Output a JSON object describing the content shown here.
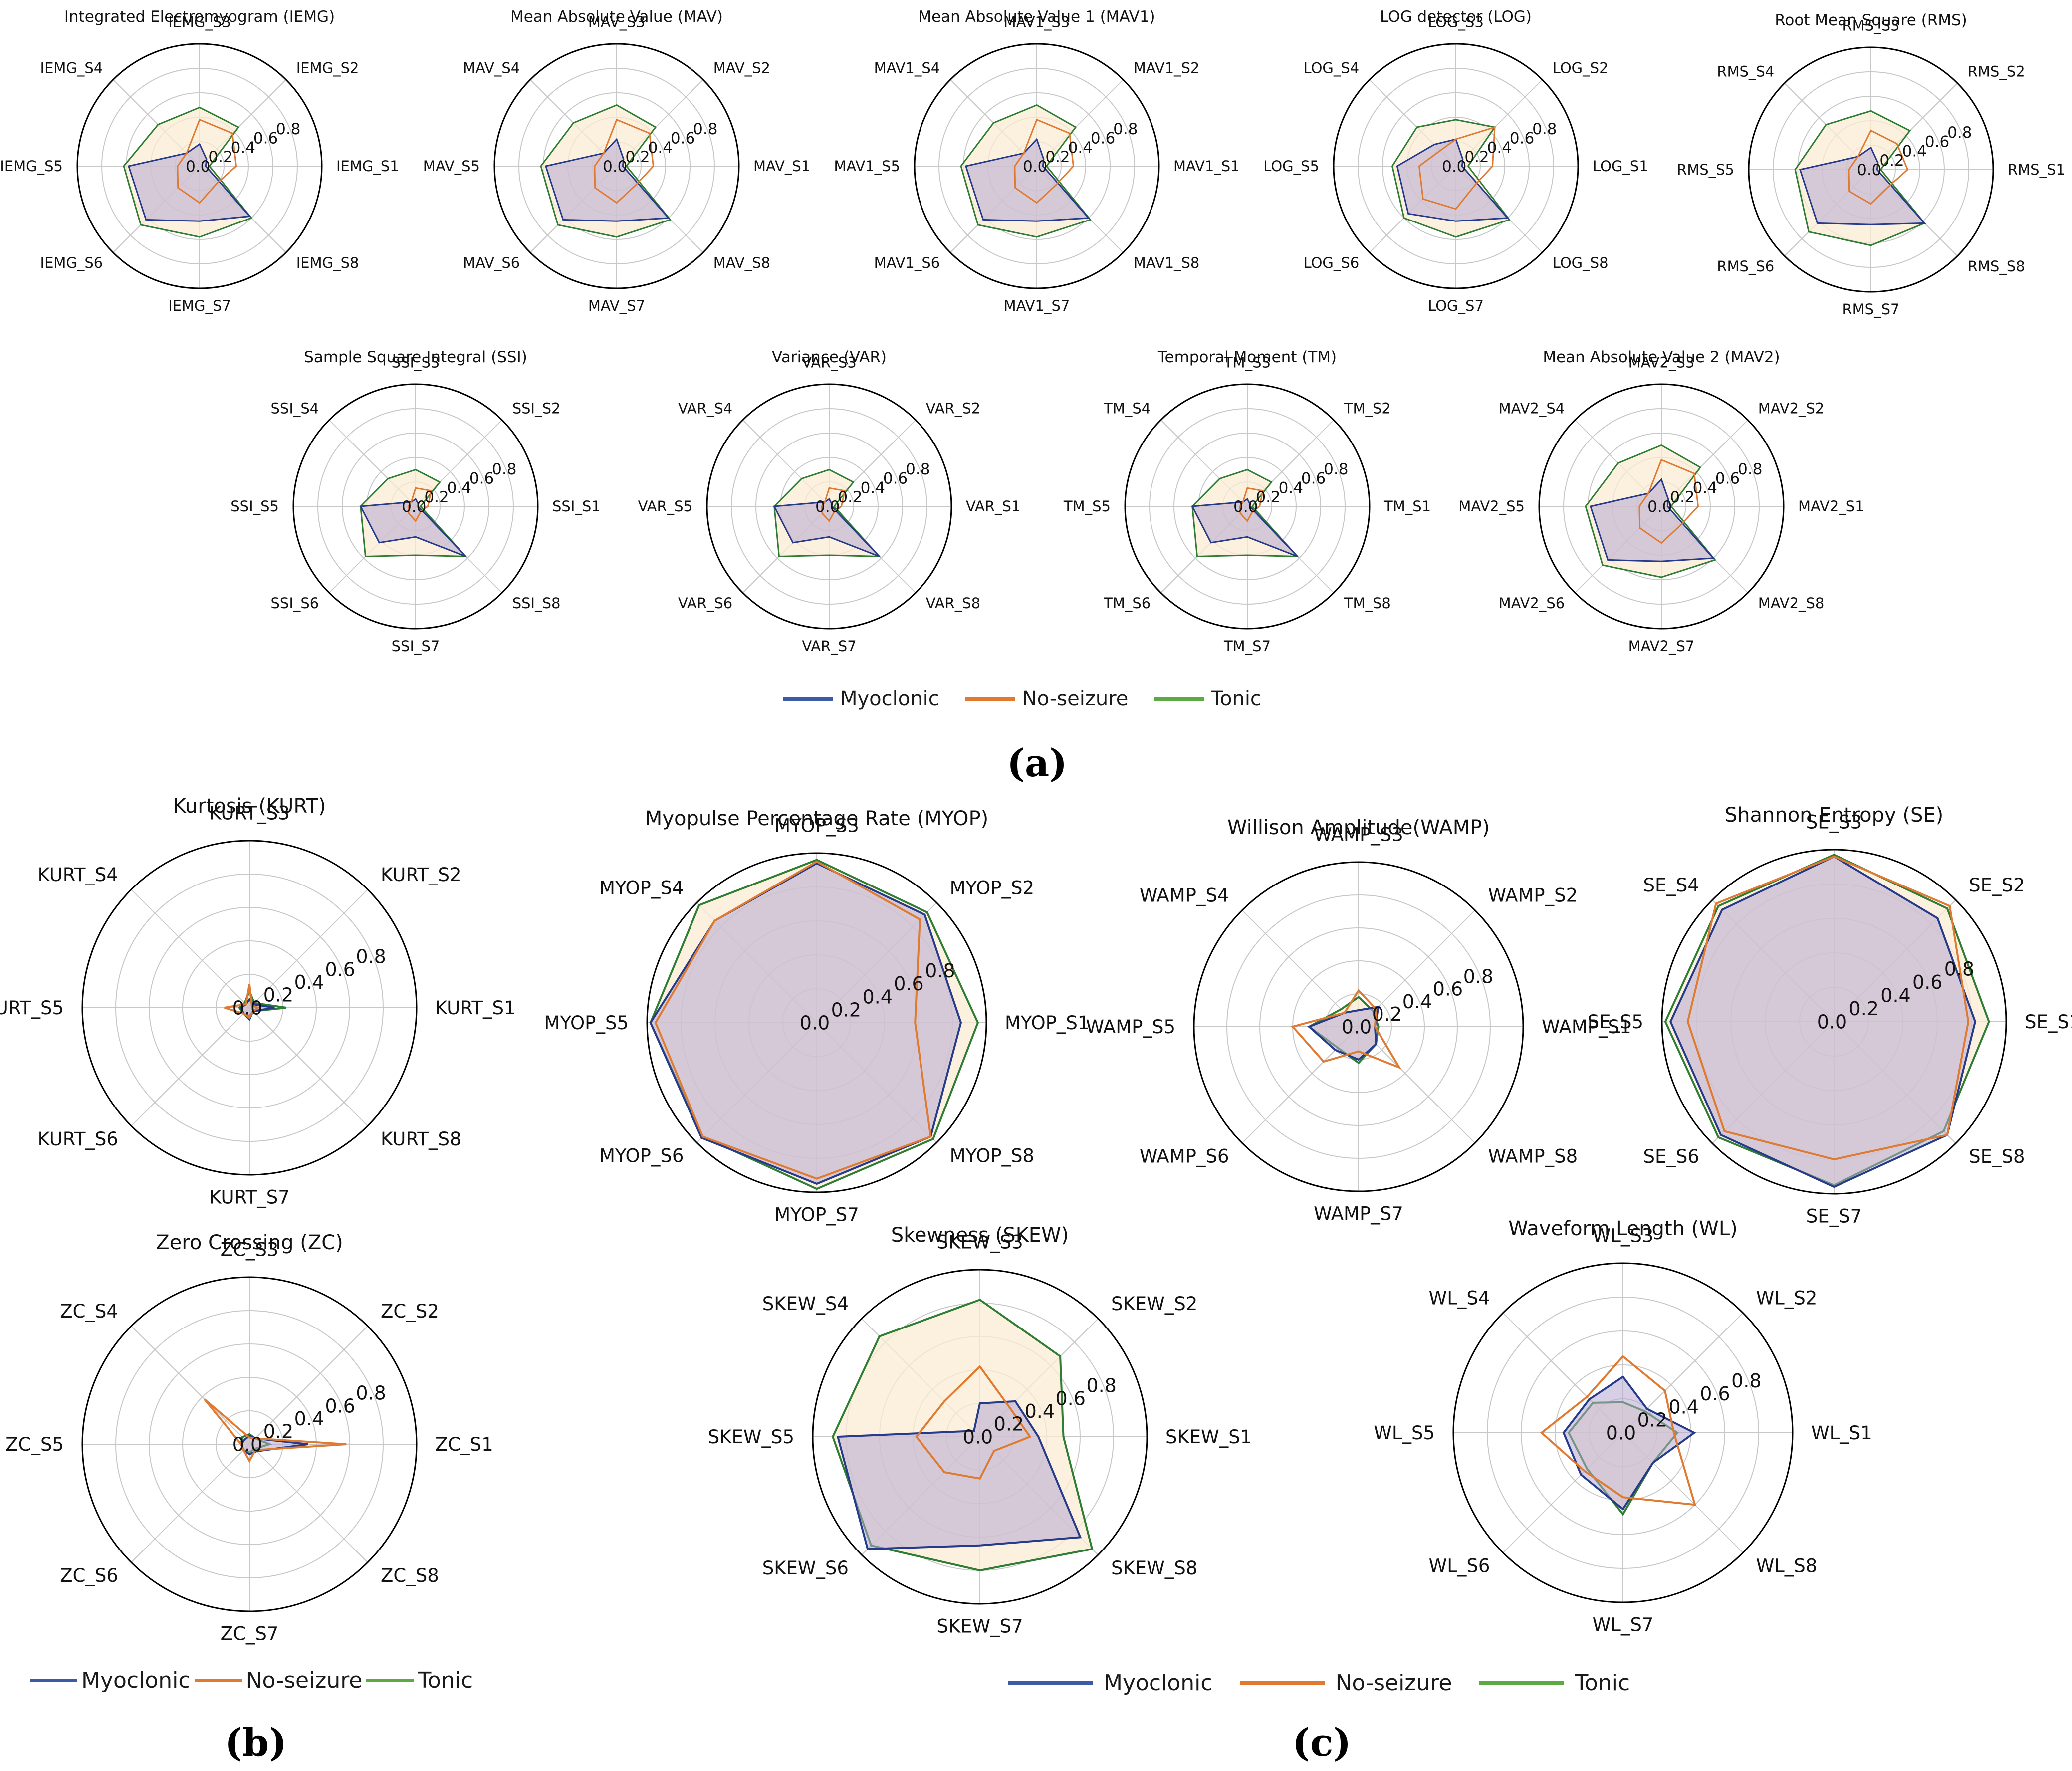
{
  "figure": {
    "panel_labels": {
      "a": "(a)",
      "b": "(b)",
      "c": "(c)"
    },
    "legend_a": [
      "Myoclonic",
      "No-seizure",
      "Tonic"
    ],
    "legend_b": [
      "Myoclonic",
      "No-seizure",
      "Tonic"
    ],
    "legend_c": [
      "Myoclonic",
      "No-seizure",
      "Tonic"
    ]
  },
  "colors": {
    "Myoclonic": "#3b5ba9",
    "No-seizure": "#e07a30",
    "Tonic": "#5da943",
    "Tonic_fill": "#fbecd4",
    "Myoclonic_fill": "#b5a8cf"
  },
  "chart_data": [
    {
      "type": "radar",
      "title": "Integrated Electromyogram (IEMG)",
      "prefix": "IEMG",
      "axes": [
        "IEMG_S1",
        "IEMG_S2",
        "IEMG_S3",
        "IEMG_S4",
        "IEMG_S5",
        "IEMG_S6",
        "IEMG_S7",
        "IEMG_S8"
      ],
      "rticks": [
        "0.0",
        "0.2",
        "0.4",
        "0.6",
        "0.8"
      ],
      "rlim": [
        0,
        1
      ],
      "series": [
        {
          "name": "Myoclonic",
          "values": [
            0.05,
            0.08,
            0.18,
            0.15,
            0.58,
            0.62,
            0.45,
            0.58
          ]
        },
        {
          "name": "No-seizure",
          "values": [
            0.3,
            0.38,
            0.38,
            0.15,
            0.18,
            0.25,
            0.3,
            0.2
          ]
        },
        {
          "name": "Tonic",
          "values": [
            0.08,
            0.45,
            0.48,
            0.48,
            0.62,
            0.68,
            0.58,
            0.6
          ]
        }
      ]
    },
    {
      "type": "radar",
      "title": "Mean Absolute Value (MAV)",
      "prefix": "MAV",
      "axes": [
        "MAV_S1",
        "MAV_S2",
        "MAV_S3",
        "MAV_S4",
        "MAV_S5",
        "MAV_S6",
        "MAV_S7",
        "MAV_S8"
      ],
      "rticks": [
        "0.0",
        "0.2",
        "0.4",
        "0.6",
        "0.8"
      ],
      "rlim": [
        0,
        1
      ],
      "series": [
        {
          "name": "Myoclonic",
          "values": [
            0.05,
            0.08,
            0.22,
            0.15,
            0.58,
            0.62,
            0.45,
            0.6
          ]
        },
        {
          "name": "No-seizure",
          "values": [
            0.3,
            0.38,
            0.38,
            0.15,
            0.18,
            0.25,
            0.3,
            0.22
          ]
        },
        {
          "name": "Tonic",
          "values": [
            0.08,
            0.45,
            0.5,
            0.5,
            0.62,
            0.68,
            0.58,
            0.62
          ]
        }
      ]
    },
    {
      "type": "radar",
      "title": "Mean Absolute Value 1 (MAV1)",
      "prefix": "MAV1",
      "axes": [
        "MAV1_S1",
        "MAV1_S2",
        "MAV1_S3",
        "MAV1_S4",
        "MAV1_S5",
        "MAV1_S6",
        "MAV1_S7",
        "MAV1_S8"
      ],
      "rticks": [
        "0.0",
        "0.2",
        "0.4",
        "0.6",
        "0.8"
      ],
      "rlim": [
        0,
        1
      ],
      "series": [
        {
          "name": "Myoclonic",
          "values": [
            0.05,
            0.08,
            0.22,
            0.15,
            0.58,
            0.62,
            0.45,
            0.6
          ]
        },
        {
          "name": "No-seizure",
          "values": [
            0.3,
            0.38,
            0.38,
            0.15,
            0.18,
            0.25,
            0.3,
            0.22
          ]
        },
        {
          "name": "Tonic",
          "values": [
            0.08,
            0.45,
            0.5,
            0.5,
            0.62,
            0.68,
            0.58,
            0.62
          ]
        }
      ]
    },
    {
      "type": "radar",
      "title": "LOG detector (LOG)",
      "prefix": "LOG",
      "axes": [
        "LOG_S1",
        "LOG_S2",
        "LOG_S3",
        "LOG_S4",
        "LOG_S5",
        "LOG_S6",
        "LOG_S7",
        "LOG_S8"
      ],
      "rticks": [
        "0.0",
        "0.2",
        "0.4",
        "0.6",
        "0.8"
      ],
      "rlim": [
        0,
        1
      ],
      "series": [
        {
          "name": "Myoclonic",
          "values": [
            0.05,
            0.08,
            0.22,
            0.25,
            0.48,
            0.55,
            0.45,
            0.6
          ]
        },
        {
          "name": "No-seizure",
          "values": [
            0.3,
            0.45,
            0.22,
            0.18,
            0.3,
            0.38,
            0.35,
            0.22
          ]
        },
        {
          "name": "Tonic",
          "values": [
            0.1,
            0.45,
            0.38,
            0.45,
            0.52,
            0.6,
            0.58,
            0.62
          ]
        }
      ]
    },
    {
      "type": "radar",
      "title": "Root Mean Square (RMS)",
      "prefix": "RMS",
      "axes": [
        "RMS_S1",
        "RMS_S2",
        "RMS_S3",
        "RMS_S4",
        "RMS_S5",
        "RMS_S6",
        "RMS_S7",
        "RMS_S8"
      ],
      "rticks": [
        "0.0",
        "0.2",
        "0.4",
        "0.6",
        "0.8"
      ],
      "rlim": [
        0,
        1
      ],
      "series": [
        {
          "name": "Myoclonic",
          "values": [
            0.05,
            0.08,
            0.18,
            0.15,
            0.58,
            0.62,
            0.45,
            0.62
          ]
        },
        {
          "name": "No-seizure",
          "values": [
            0.3,
            0.3,
            0.32,
            0.15,
            0.18,
            0.25,
            0.28,
            0.2
          ]
        },
        {
          "name": "Tonic",
          "values": [
            0.08,
            0.45,
            0.48,
            0.52,
            0.62,
            0.72,
            0.62,
            0.62
          ]
        }
      ]
    },
    {
      "type": "radar",
      "title": "Sample Square Integral (SSI)",
      "prefix": "SSI",
      "axes": [
        "SSI_S1",
        "SSI_S2",
        "SSI_S3",
        "SSI_S4",
        "SSI_S5",
        "SSI_S6",
        "SSI_S7",
        "SSI_S8"
      ],
      "rticks": [
        "0.0",
        "0.2",
        "0.4",
        "0.6",
        "0.8"
      ],
      "rlim": [
        0,
        1
      ],
      "series": [
        {
          "name": "Myoclonic",
          "values": [
            0.02,
            0.03,
            0.06,
            0.05,
            0.45,
            0.42,
            0.25,
            0.58
          ]
        },
        {
          "name": "No-seizure",
          "values": [
            0.1,
            0.18,
            0.15,
            0.05,
            0.06,
            0.08,
            0.12,
            0.06
          ]
        },
        {
          "name": "Tonic",
          "values": [
            0.04,
            0.28,
            0.3,
            0.32,
            0.45,
            0.58,
            0.4,
            0.58
          ]
        }
      ]
    },
    {
      "type": "radar",
      "title": "Variance (VAR)",
      "prefix": "VAR",
      "axes": [
        "VAR_S1",
        "VAR_S2",
        "VAR_S3",
        "VAR_S4",
        "VAR_S5",
        "VAR_S6",
        "VAR_S7",
        "VAR_S8"
      ],
      "rticks": [
        "0.0",
        "0.2",
        "0.4",
        "0.6",
        "0.8"
      ],
      "rlim": [
        0,
        1
      ],
      "series": [
        {
          "name": "Myoclonic",
          "values": [
            0.02,
            0.03,
            0.06,
            0.05,
            0.45,
            0.42,
            0.25,
            0.58
          ]
        },
        {
          "name": "No-seizure",
          "values": [
            0.1,
            0.18,
            0.15,
            0.05,
            0.06,
            0.08,
            0.12,
            0.06
          ]
        },
        {
          "name": "Tonic",
          "values": [
            0.04,
            0.28,
            0.3,
            0.32,
            0.45,
            0.58,
            0.4,
            0.58
          ]
        }
      ]
    },
    {
      "type": "radar",
      "title": "Temporal Moment (TM)",
      "prefix": "TM",
      "axes": [
        "TM_S1",
        "TM_S2",
        "TM_S3",
        "TM_S4",
        "TM_S5",
        "TM_S6",
        "TM_S7",
        "TM_S8"
      ],
      "rticks": [
        "0.0",
        "0.2",
        "0.4",
        "0.6",
        "0.8"
      ],
      "rlim": [
        0,
        1
      ],
      "series": [
        {
          "name": "Myoclonic",
          "values": [
            0.02,
            0.03,
            0.06,
            0.05,
            0.45,
            0.42,
            0.25,
            0.58
          ]
        },
        {
          "name": "No-seizure",
          "values": [
            0.1,
            0.18,
            0.15,
            0.05,
            0.06,
            0.08,
            0.12,
            0.06
          ]
        },
        {
          "name": "Tonic",
          "values": [
            0.04,
            0.28,
            0.3,
            0.32,
            0.45,
            0.58,
            0.4,
            0.58
          ]
        }
      ]
    },
    {
      "type": "radar",
      "title": "Mean Absolute Value 2 (MAV2)",
      "prefix": "MAV2",
      "axes": [
        "MAV2_S1",
        "MAV2_S2",
        "MAV2_S3",
        "MAV2_S4",
        "MAV2_S5",
        "MAV2_S6",
        "MAV2_S7",
        "MAV2_S8"
      ],
      "rticks": [
        "0.0",
        "0.2",
        "0.4",
        "0.6",
        "0.8"
      ],
      "rlim": [
        0,
        1
      ],
      "series": [
        {
          "name": "Myoclonic",
          "values": [
            0.05,
            0.08,
            0.22,
            0.15,
            0.58,
            0.62,
            0.45,
            0.6
          ]
        },
        {
          "name": "No-seizure",
          "values": [
            0.3,
            0.38,
            0.38,
            0.15,
            0.18,
            0.25,
            0.3,
            0.22
          ]
        },
        {
          "name": "Tonic",
          "values": [
            0.08,
            0.45,
            0.5,
            0.5,
            0.62,
            0.68,
            0.58,
            0.62
          ]
        }
      ]
    },
    {
      "type": "radar",
      "title": "Kurtosis (KURT)",
      "prefix": "KURT",
      "axes": [
        "KURT_S1",
        "KURT_S2",
        "KURT_S3",
        "KURT_S4",
        "KURT_S5",
        "KURT_S6",
        "KURT_S7",
        "KURT_S8"
      ],
      "rticks": [
        "0.0",
        "0.2",
        "0.4",
        "0.6",
        "0.8"
      ],
      "rlim": [
        0,
        1
      ],
      "series": [
        {
          "name": "Myoclonic",
          "values": [
            0.15,
            0.03,
            0.05,
            0.03,
            0.05,
            0.05,
            0.07,
            0.03
          ]
        },
        {
          "name": "No-seizure",
          "values": [
            0.05,
            0.02,
            0.14,
            0.03,
            0.15,
            0.05,
            0.06,
            0.03
          ]
        },
        {
          "name": "Tonic",
          "values": [
            0.22,
            0.04,
            0.1,
            0.04,
            0.06,
            0.05,
            0.05,
            0.03
          ]
        }
      ]
    },
    {
      "type": "radar",
      "title": "Myopulse Percentage Rate (MYOP)",
      "prefix": "MYOP",
      "axes": [
        "MYOP_S1",
        "MYOP_S2",
        "MYOP_S3",
        "MYOP_S4",
        "MYOP_S5",
        "MYOP_S6",
        "MYOP_S7",
        "MYOP_S8"
      ],
      "rticks": [
        "0.0",
        "0.2",
        "0.4",
        "0.6",
        "0.8"
      ],
      "rlim": [
        0,
        1
      ],
      "series": [
        {
          "name": "Myoclonic",
          "values": [
            0.85,
            0.9,
            0.94,
            0.85,
            0.98,
            0.96,
            0.95,
            0.95
          ]
        },
        {
          "name": "No-seizure",
          "values": [
            0.58,
            0.86,
            0.95,
            0.85,
            0.95,
            0.95,
            0.92,
            0.95
          ]
        },
        {
          "name": "Tonic",
          "values": [
            0.95,
            0.92,
            0.96,
            0.98,
            0.98,
            0.95,
            0.98,
            0.97
          ]
        }
      ]
    },
    {
      "type": "radar",
      "title": "Willison Amplitude(WAMP)",
      "prefix": "WAMP",
      "axes": [
        "WAMP_S1",
        "WAMP_S2",
        "WAMP_S3",
        "WAMP_S4",
        "WAMP_S5",
        "WAMP_S6",
        "WAMP_S7",
        "WAMP_S8"
      ],
      "rticks": [
        "0.0",
        "0.2",
        "0.4",
        "0.6",
        "0.8"
      ],
      "rlim": [
        0,
        1
      ],
      "series": [
        {
          "name": "Myoclonic",
          "values": [
            0.1,
            0.17,
            0.1,
            0.12,
            0.3,
            0.2,
            0.2,
            0.15
          ]
        },
        {
          "name": "No-seizure",
          "values": [
            0.1,
            0.15,
            0.22,
            0.12,
            0.4,
            0.3,
            0.15,
            0.35
          ]
        },
        {
          "name": "Tonic",
          "values": [
            0.12,
            0.13,
            0.18,
            0.15,
            0.3,
            0.18,
            0.22,
            0.15
          ]
        }
      ]
    },
    {
      "type": "radar",
      "title": "Shannon Entropy (SE)",
      "prefix": "SE",
      "axes": [
        "SE_S1",
        "SE_S2",
        "SE_S3",
        "SE_S4",
        "SE_S5",
        "SE_S6",
        "SE_S7",
        "SE_S8"
      ],
      "rticks": [
        "0.0",
        "0.2",
        "0.4",
        "0.6",
        "0.8"
      ],
      "rlim": [
        0,
        1
      ],
      "series": [
        {
          "name": "Myoclonic",
          "values": [
            0.82,
            0.85,
            0.96,
            0.92,
            0.95,
            0.93,
            0.96,
            0.93
          ]
        },
        {
          "name": "No-seizure",
          "values": [
            0.78,
            0.95,
            0.96,
            0.97,
            0.85,
            0.9,
            0.8,
            0.93
          ]
        },
        {
          "name": "Tonic",
          "values": [
            0.9,
            0.93,
            0.97,
            0.95,
            0.98,
            0.95,
            0.95,
            0.9
          ]
        }
      ]
    },
    {
      "type": "radar",
      "title": "Zero Crossing (ZC)",
      "prefix": "ZC",
      "axes": [
        "ZC_S1",
        "ZC_S2",
        "ZC_S3",
        "ZC_S4",
        "ZC_S5",
        "ZC_S6",
        "ZC_S7",
        "ZC_S8"
      ],
      "rticks": [
        "0.0",
        "0.2",
        "0.4",
        "0.6",
        "0.8"
      ],
      "rlim": [
        0,
        1
      ],
      "series": [
        {
          "name": "Myoclonic",
          "values": [
            0.35,
            0.05,
            0.05,
            0.04,
            0.05,
            0.05,
            0.06,
            0.06
          ]
        },
        {
          "name": "No-seizure",
          "values": [
            0.58,
            0.05,
            0.04,
            0.38,
            0.05,
            0.05,
            0.1,
            0.05
          ]
        },
        {
          "name": "Tonic",
          "values": [
            0.12,
            0.05,
            0.06,
            0.06,
            0.05,
            0.05,
            0.05,
            0.04
          ]
        }
      ]
    },
    {
      "type": "radar",
      "title": "Skewness (SKEW)",
      "prefix": "SKEW",
      "axes": [
        "SKEW_S1",
        "SKEW_S2",
        "SKEW_S3",
        "SKEW_S4",
        "SKEW_S5",
        "SKEW_S6",
        "SKEW_S7",
        "SKEW_S8"
      ],
      "rticks": [
        "0.0",
        "0.2",
        "0.4",
        "0.6",
        "0.8"
      ],
      "rlim": [
        0,
        1
      ],
      "series": [
        {
          "name": "Myoclonic",
          "values": [
            0.35,
            0.3,
            0.2,
            0.05,
            0.85,
            0.95,
            0.65,
            0.85
          ]
        },
        {
          "name": "No-seizure",
          "values": [
            0.3,
            0.25,
            0.42,
            0.3,
            0.38,
            0.3,
            0.25,
            0.12
          ]
        },
        {
          "name": "Tonic",
          "values": [
            0.5,
            0.68,
            0.82,
            0.85,
            0.88,
            0.92,
            0.8,
            0.95
          ]
        }
      ]
    },
    {
      "type": "radar",
      "title": "Waveform Length (WL)",
      "prefix": "WL",
      "axes": [
        "WL_S1",
        "WL_S2",
        "WL_S3",
        "WL_S4",
        "WL_S5",
        "WL_S6",
        "WL_S7",
        "WL_S8"
      ],
      "rticks": [
        "0.0",
        "0.2",
        "0.4",
        "0.6",
        "0.8"
      ],
      "rlim": [
        0,
        1
      ],
      "series": [
        {
          "name": "Myoclonic",
          "values": [
            0.42,
            0.2,
            0.33,
            0.28,
            0.35,
            0.35,
            0.45,
            0.25
          ]
        },
        {
          "name": "No-seizure",
          "values": [
            0.3,
            0.35,
            0.45,
            0.3,
            0.48,
            0.32,
            0.38,
            0.6
          ]
        },
        {
          "name": "Tonic",
          "values": [
            0.32,
            0.18,
            0.18,
            0.25,
            0.32,
            0.3,
            0.48,
            0.25
          ]
        }
      ]
    }
  ]
}
